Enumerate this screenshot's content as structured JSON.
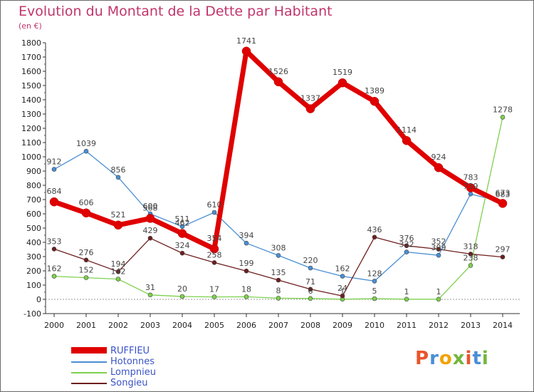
{
  "header": {
    "title": "Evolution du Montant de la Dette par Habitant",
    "subtitle": "(en €)"
  },
  "logo": {
    "text": "Proxiti",
    "colors": [
      "#e8562e",
      "#4a8fd4",
      "#f2a300",
      "#74b63b",
      "#e8562e",
      "#4a8fd4",
      "#74b63b"
    ]
  },
  "chart_data": {
    "type": "line",
    "x": [
      "2000",
      "2001",
      "2002",
      "2003",
      "2004",
      "2005",
      "2006",
      "2007",
      "2008",
      "2009",
      "2010",
      "2011",
      "2012",
      "2013",
      "2014"
    ],
    "ylim": [
      -100,
      1800
    ],
    "yticks": [
      "-100",
      "0",
      "100",
      "200",
      "300",
      "400",
      "500",
      "600",
      "700",
      "800",
      "900",
      "1000",
      "1100",
      "1200",
      "1300",
      "1400",
      "1500",
      "1600",
      "1700",
      "1800"
    ],
    "grid": false,
    "legend_position": "bottom-left",
    "series": [
      {
        "name": "RUFFIEU",
        "color": "#e00000",
        "values": [
          684,
          606,
          521,
          568,
          462,
          354,
          1741,
          1526,
          1337,
          1519,
          1389,
          1114,
          924,
          783,
          673
        ],
        "labels": [
          "684",
          "606",
          "521",
          "568",
          "462",
          "354",
          "1741",
          "1526",
          "1337",
          "1519",
          "1389",
          "1114",
          "924",
          "783",
          "673"
        ]
      },
      {
        "name": "Hotonnes",
        "color": "#4a8fd4",
        "values": [
          912,
          1039,
          856,
          600,
          511,
          610,
          394,
          308,
          220,
          162,
          128,
          332,
          309,
          739,
          683
        ],
        "labels": [
          "912",
          "1039",
          "856",
          "600",
          "511",
          "610",
          "394",
          "308",
          "220",
          "162",
          "128",
          "332",
          "309",
          "739",
          "683"
        ]
      },
      {
        "name": "Lompnieu",
        "color": "#7ed04e",
        "values": [
          162,
          152,
          142,
          31,
          20,
          17,
          18,
          8,
          6,
          1,
          5,
          1,
          1,
          238,
          1278
        ],
        "labels": [
          "162",
          "152",
          "142",
          "31",
          "20",
          "17",
          "18",
          "8",
          "6",
          "1",
          "5",
          "1",
          "1",
          "238",
          "1278"
        ]
      },
      {
        "name": "Songieu",
        "color": "#6e1e1e",
        "values": [
          353,
          276,
          194,
          429,
          324,
          258,
          199,
          135,
          71,
          24,
          436,
          376,
          352,
          318,
          297
        ],
        "labels": [
          "353",
          "276",
          "194",
          "429",
          "324",
          "258",
          "199",
          "135",
          "71",
          "24",
          "436",
          "376",
          "352",
          "318",
          "297"
        ]
      }
    ]
  }
}
